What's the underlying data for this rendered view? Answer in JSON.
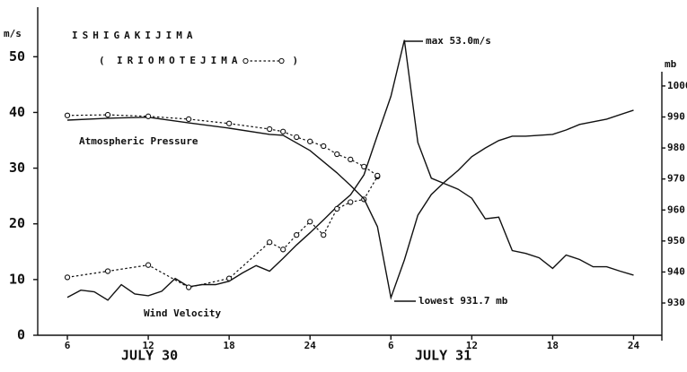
{
  "chart_data": {
    "type": "line",
    "ylabel": "m/s",
    "y2label": "mb",
    "legend_parens": [
      "(",
      ")"
    ],
    "x_group_labels": [
      "JULY 30",
      "JULY 31"
    ],
    "annotations": [
      "max 53.0m/s",
      "lowest 931.7 mb",
      "Atmospheric Pressure",
      "Wind Velocity"
    ],
    "xlim": [
      3.8,
      50.1
    ],
    "xticks": [
      6,
      12,
      18,
      24,
      {
        "value": 30,
        "label": "6"
      },
      {
        "value": 36,
        "label": "12"
      },
      {
        "value": 42,
        "label": "18"
      },
      {
        "value": 48,
        "label": "24"
      }
    ],
    "ylim": [
      0,
      58.9
    ],
    "yticks": [
      0,
      10,
      20,
      30,
      40,
      50
    ],
    "y2lim": [
      919.6,
      1004.6
    ],
    "y2ticks": [
      930,
      940,
      950,
      960,
      970,
      980,
      990,
      1000
    ],
    "series": [
      {
        "name": "ISHIGAKIJIMA",
        "color": "#111111",
        "style": "solid",
        "x": [
          6,
          7,
          8,
          9,
          10,
          11,
          12,
          13,
          14,
          15,
          16,
          17,
          18,
          19,
          20,
          21,
          22,
          23,
          24,
          25,
          26,
          27,
          28,
          29,
          30,
          31,
          32,
          33,
          34,
          35,
          36,
          37,
          38,
          39,
          40,
          41,
          42,
          43,
          44,
          45,
          46,
          47,
          48
        ],
        "values": [
          6.8,
          8.1,
          7.8,
          6.3,
          9.1,
          7.4,
          7.1,
          7.9,
          10.2,
          8.7,
          9.1,
          9.1,
          9.7,
          11.2,
          12.5,
          11.5,
          13.8,
          16.2,
          18.4,
          20.7,
          23.1,
          25.2,
          28.8,
          35.9,
          42.9,
          53.0,
          34.6,
          28.2,
          27.2,
          26.2,
          24.6,
          20.9,
          21.2,
          15.2,
          14.7,
          13.9,
          12.0,
          14.4,
          13.6,
          12.3,
          12.3,
          11.5,
          10.8
        ]
      },
      {
        "name": "IRIOMOTEJIMA",
        "color": "#111111",
        "style": "dotted",
        "x": [
          6,
          9,
          12,
          15,
          18,
          21,
          22,
          23,
          24,
          25,
          26,
          27,
          28,
          29
        ],
        "values": [
          10.4,
          11.5,
          12.6,
          8.6,
          10.2,
          16.7,
          15.4,
          18.0,
          20.4,
          18.0,
          22.7,
          23.9,
          24.4,
          28.5
        ]
      },
      {
        "color": "#111111",
        "style": "solid",
        "axis": "y2",
        "x": [
          6,
          9,
          12,
          15,
          18,
          21,
          22,
          24,
          26,
          27,
          28,
          29,
          30,
          31,
          32,
          33,
          34,
          35,
          36,
          37,
          38,
          39,
          40,
          42,
          43,
          44,
          46,
          48
        ],
        "values": [
          989.0,
          989.6,
          989.9,
          988.1,
          986.4,
          984.4,
          984.1,
          979.2,
          972.0,
          967.9,
          963.6,
          954.6,
          931.7,
          943.9,
          958.3,
          965.0,
          969.1,
          972.8,
          977.2,
          980.0,
          982.4,
          983.8,
          983.8,
          984.4,
          985.8,
          987.6,
          989.3,
          992.2
        ]
      },
      {
        "color": "#111111",
        "style": "dotted",
        "axis": "y2",
        "x": [
          6,
          9,
          12,
          15,
          18,
          21,
          22,
          23,
          24,
          25,
          26,
          27,
          28,
          29
        ],
        "values": [
          990.5,
          990.7,
          990.2,
          989.3,
          987.9,
          986.1,
          985.3,
          983.5,
          982.1,
          980.6,
          978.0,
          976.3,
          974.0,
          971.1
        ]
      }
    ]
  }
}
